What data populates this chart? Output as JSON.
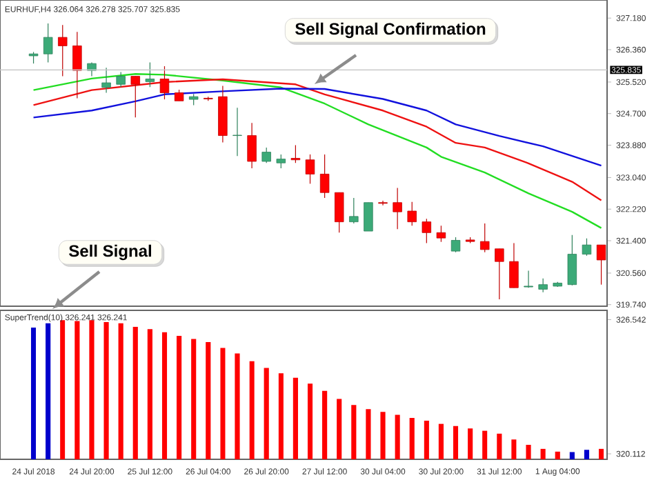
{
  "chart_data": [
    {
      "type": "candlestick",
      "title": "EURHUF,H4 326.064 326.278 325.707 325.835",
      "categories": [
        null,
        null,
        null,
        null,
        null,
        null,
        null,
        null,
        null,
        null,
        null,
        null,
        null,
        null,
        null,
        null,
        null,
        null,
        null,
        null,
        null,
        null,
        null,
        null,
        null,
        null,
        null,
        null,
        null,
        null,
        null,
        null,
        null,
        null,
        null,
        null,
        null,
        null,
        null,
        null
      ],
      "ohlc": [
        [
          326.2,
          326.3,
          326.0,
          326.25
        ],
        [
          326.25,
          327.04,
          326.03,
          326.68
        ],
        [
          326.68,
          327.0,
          325.67,
          326.46
        ],
        [
          326.46,
          326.82,
          325.1,
          325.82
        ],
        [
          325.82,
          326.03,
          325.67,
          326.0
        ],
        [
          325.38,
          325.89,
          325.24,
          325.5
        ],
        [
          325.46,
          325.78,
          325.39,
          325.67
        ],
        [
          325.67,
          325.67,
          324.6,
          325.46
        ],
        [
          325.53,
          326.03,
          325.39,
          325.6
        ],
        [
          325.6,
          325.93,
          325.07,
          325.24
        ],
        [
          325.24,
          325.32,
          325.03,
          325.03
        ],
        [
          325.07,
          325.21,
          324.92,
          325.14
        ],
        [
          325.1,
          325.14,
          325.03,
          325.08
        ],
        [
          325.14,
          325.42,
          323.95,
          324.13
        ],
        [
          324.14,
          324.85,
          323.6,
          324.13
        ],
        [
          324.13,
          324.46,
          323.28,
          323.46
        ],
        [
          323.46,
          323.82,
          323.42,
          323.7
        ],
        [
          323.42,
          323.64,
          323.28,
          323.52
        ],
        [
          323.54,
          323.88,
          323.42,
          323.5
        ],
        [
          323.5,
          323.64,
          322.88,
          323.13
        ],
        [
          323.13,
          323.64,
          322.51,
          322.65
        ],
        [
          322.65,
          322.65,
          321.61,
          321.89
        ],
        [
          321.89,
          322.51,
          321.85,
          322.03
        ],
        [
          321.65,
          322.39,
          321.65,
          322.39
        ],
        [
          322.39,
          322.44,
          322.32,
          322.37
        ],
        [
          322.39,
          322.77,
          321.7,
          322.15
        ],
        [
          322.17,
          322.41,
          321.79,
          321.89
        ],
        [
          321.89,
          321.97,
          321.34,
          321.61
        ],
        [
          321.61,
          321.79,
          321.37,
          321.47
        ],
        [
          321.13,
          321.49,
          321.1,
          321.41
        ],
        [
          321.42,
          321.49,
          321.34,
          321.38
        ],
        [
          321.38,
          321.85,
          321.1,
          321.17
        ],
        [
          321.19,
          321.19,
          319.88,
          320.86
        ],
        [
          320.86,
          321.34,
          320.18,
          320.18
        ],
        [
          320.2,
          320.62,
          320.18,
          320.22
        ],
        [
          320.14,
          320.42,
          320.06,
          320.26
        ],
        [
          320.22,
          320.33,
          320.2,
          320.3
        ],
        [
          320.26,
          321.55,
          320.24,
          321.05
        ],
        [
          321.05,
          321.46,
          321.01,
          321.29
        ],
        [
          321.29,
          321.29,
          320.26,
          320.9
        ]
      ],
      "colors": [
        "#3caa78",
        "#3caa78",
        "#ff0000",
        "#ff0000",
        "#3caa78",
        "#3caa78",
        "#3caa78",
        "#ff0000",
        "#3caa78",
        "#ff0000",
        "#ff0000",
        "#3caa78",
        "#ff0000",
        "#ff0000",
        "#3caa78",
        "#ff0000",
        "#3caa78",
        "#3caa78",
        "#ff0000",
        "#ff0000",
        "#ff0000",
        "#ff0000",
        "#3caa78",
        "#3caa78",
        "#ff0000",
        "#ff0000",
        "#ff0000",
        "#ff0000",
        "#ff0000",
        "#3caa78",
        "#ff0000",
        "#ff0000",
        "#ff0000",
        "#ff0000",
        "#3caa78",
        "#3caa78",
        "#3caa78",
        "#3caa78",
        "#3caa78",
        "#ff0000"
      ],
      "series": [
        {
          "type": "line",
          "color": "#22dd22",
          "values": [
            325.31,
            null,
            null,
            null,
            325.61,
            null,
            null,
            325.73,
            null,
            325.71,
            null,
            null,
            null,
            325.56,
            null,
            null,
            null,
            325.38,
            null,
            null,
            324.96,
            null,
            null,
            324.42,
            null,
            null,
            null,
            323.82,
            323.58,
            null,
            null,
            323.17,
            null,
            null,
            322.63,
            null,
            null,
            322.15,
            null,
            321.73
          ]
        },
        {
          "type": "line",
          "color": "#ee1111",
          "values": [
            324.92,
            null,
            null,
            null,
            325.31,
            null,
            null,
            null,
            null,
            325.52,
            null,
            null,
            null,
            325.59,
            null,
            null,
            null,
            null,
            325.46,
            null,
            325.2,
            null,
            null,
            null,
            324.78,
            null,
            null,
            324.36,
            null,
            323.94,
            null,
            323.82,
            null,
            null,
            323.41,
            null,
            null,
            322.93,
            null,
            322.45
          ]
        },
        {
          "type": "line",
          "color": "#1111dd",
          "values": [
            324.6,
            null,
            null,
            null,
            324.78,
            null,
            null,
            325.02,
            null,
            325.2,
            null,
            null,
            null,
            325.28,
            null,
            null,
            null,
            325.35,
            null,
            null,
            325.34,
            null,
            null,
            null,
            325.08,
            null,
            null,
            324.78,
            null,
            324.42,
            null,
            null,
            324.12,
            null,
            null,
            323.85,
            null,
            null,
            null,
            323.35
          ]
        }
      ],
      "ylim": [
        319.7,
        327.65
      ],
      "yticks": [
        {
          "value": 319.74,
          "label": "319.740"
        },
        {
          "value": 320.56,
          "label": "320.560"
        },
        {
          "value": 321.4,
          "label": "321.400"
        },
        {
          "value": 322.22,
          "label": "322.220"
        },
        {
          "value": 323.04,
          "label": "323.040"
        },
        {
          "value": 323.88,
          "label": "323.880"
        },
        {
          "value": 324.7,
          "label": "324.700"
        },
        {
          "value": 325.52,
          "label": "325.520"
        },
        {
          "value": 326.36,
          "label": "326.360"
        },
        {
          "value": 327.18,
          "label": "327.180"
        }
      ],
      "ref_lines": [
        {
          "axis": "y",
          "value": 325.835,
          "label": "325.835",
          "color": "#c8c8c8"
        }
      ],
      "annotations": [
        "Sell Signal Confirmation"
      ],
      "tick_labels": "y"
    },
    {
      "type": "bar",
      "title": "SuperTrend(10) 326.241 326.241",
      "categories": [
        "24 Jul 2018",
        null,
        null,
        null,
        "24 Jul 20:00",
        null,
        null,
        null,
        "25 Jul 12:00",
        null,
        null,
        null,
        "26 Jul 04:00",
        null,
        null,
        null,
        "26 Jul 20:00",
        null,
        null,
        null,
        "27 Jul 12:00",
        null,
        null,
        null,
        "30 Jul 04:00",
        null,
        null,
        null,
        "30 Jul 20:00",
        null,
        null,
        null,
        "31 Jul 12:00",
        null,
        null,
        null,
        "1 Aug 04:00",
        null,
        null,
        null
      ],
      "values": [
        326.16,
        326.37,
        326.52,
        326.48,
        326.52,
        326.43,
        326.37,
        326.2,
        326.09,
        325.94,
        325.77,
        325.62,
        325.47,
        325.19,
        324.92,
        324.55,
        324.23,
        323.97,
        323.76,
        323.48,
        323.13,
        322.75,
        322.45,
        322.25,
        322.12,
        321.98,
        321.83,
        321.7,
        321.55,
        321.44,
        321.33,
        321.22,
        321.08,
        320.8,
        320.54,
        320.35,
        320.22,
        320.2,
        320.3,
        320.35
      ],
      "colors": [
        "#0000cc",
        "#0000cc",
        "#ff0000",
        "#ff0000",
        "#ff0000",
        "#ff0000",
        "#ff0000",
        "#ff0000",
        "#ff0000",
        "#ff0000",
        "#ff0000",
        "#ff0000",
        "#ff0000",
        "#ff0000",
        "#ff0000",
        "#ff0000",
        "#ff0000",
        "#ff0000",
        "#ff0000",
        "#ff0000",
        "#ff0000",
        "#ff0000",
        "#ff0000",
        "#ff0000",
        "#ff0000",
        "#ff0000",
        "#ff0000",
        "#ff0000",
        "#ff0000",
        "#ff0000",
        "#ff0000",
        "#ff0000",
        "#ff0000",
        "#ff0000",
        "#ff0000",
        "#ff0000",
        "#ff0000",
        "#0000cc",
        "#0000cc",
        "#ff0000"
      ],
      "ylim": [
        319.85,
        326.99
      ],
      "yticks": [
        326.542,
        320.112
      ],
      "annotations": [
        "Sell Signal"
      ]
    }
  ]
}
